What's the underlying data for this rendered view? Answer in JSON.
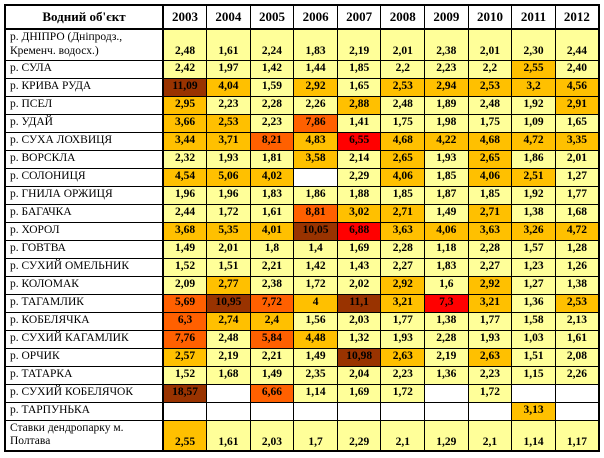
{
  "palette": {
    "y": "#FFFF99",
    "g": "#FFC000",
    "o": "#FF6000",
    "r": "#FF0000",
    "b": "#993300",
    "w": "#FFFFFF"
  },
  "table": {
    "corner_label": "Водний об'єкт",
    "years": [
      "2003",
      "2004",
      "2005",
      "2006",
      "2007",
      "2008",
      "2009",
      "2010",
      "2011",
      "2012"
    ],
    "rows": [
      {
        "label": "р. ДНІПРО (Дніпродз.,\nКременч. водосх.)",
        "tall": true,
        "cells": [
          [
            "2,48",
            "y"
          ],
          [
            "1,61",
            "y"
          ],
          [
            "2,24",
            "y"
          ],
          [
            "1,83",
            "y"
          ],
          [
            "2,19",
            "y"
          ],
          [
            "2,01",
            "y"
          ],
          [
            "2,38",
            "y"
          ],
          [
            "2,01",
            "y"
          ],
          [
            "2,30",
            "y"
          ],
          [
            "2,44",
            "y"
          ]
        ]
      },
      {
        "label": "р. СУЛА",
        "cells": [
          [
            "2,42",
            "y"
          ],
          [
            "1,97",
            "y"
          ],
          [
            "1,42",
            "y"
          ],
          [
            "1,44",
            "y"
          ],
          [
            "1,85",
            "y"
          ],
          [
            "2,2",
            "y"
          ],
          [
            "2,23",
            "y"
          ],
          [
            "2,2",
            "y"
          ],
          [
            "2,55",
            "g"
          ],
          [
            "2,40",
            "y"
          ]
        ]
      },
      {
        "label": "р. КРИВА РУДА",
        "cells": [
          [
            "11,09",
            "b"
          ],
          [
            "4,04",
            "g"
          ],
          [
            "1,59",
            "y"
          ],
          [
            "2,92",
            "g"
          ],
          [
            "1,65",
            "y"
          ],
          [
            "2,53",
            "g"
          ],
          [
            "2,94",
            "g"
          ],
          [
            "2,53",
            "g"
          ],
          [
            "3,2",
            "g"
          ],
          [
            "4,56",
            "g"
          ]
        ]
      },
      {
        "label": "р. ПСЕЛ",
        "cells": [
          [
            "2,95",
            "g"
          ],
          [
            "2,23",
            "y"
          ],
          [
            "2,28",
            "y"
          ],
          [
            "2,26",
            "y"
          ],
          [
            "2,88",
            "g"
          ],
          [
            "2,48",
            "y"
          ],
          [
            "1,89",
            "y"
          ],
          [
            "2,48",
            "y"
          ],
          [
            "1,92",
            "y"
          ],
          [
            "2,91",
            "g"
          ]
        ]
      },
      {
        "label": "р. УДАЙ",
        "cells": [
          [
            "3,66",
            "g"
          ],
          [
            "2,53",
            "g"
          ],
          [
            "2,23",
            "y"
          ],
          [
            "7,86",
            "o"
          ],
          [
            "1,41",
            "y"
          ],
          [
            "1,75",
            "y"
          ],
          [
            "1,98",
            "y"
          ],
          [
            "1,75",
            "y"
          ],
          [
            "1,09",
            "y"
          ],
          [
            "1,65",
            "y"
          ]
        ]
      },
      {
        "label": "р. СУХА ЛОХВИЦЯ",
        "cells": [
          [
            "3,44",
            "g"
          ],
          [
            "3,71",
            "g"
          ],
          [
            "8,21",
            "o"
          ],
          [
            "4,83",
            "g"
          ],
          [
            "6,55",
            "r"
          ],
          [
            "4,68",
            "g"
          ],
          [
            "4,22",
            "g"
          ],
          [
            "4,68",
            "g"
          ],
          [
            "4,72",
            "g"
          ],
          [
            "3,35",
            "g"
          ]
        ]
      },
      {
        "label": "р. ВОРСКЛА",
        "cells": [
          [
            "2,32",
            "y"
          ],
          [
            "1,93",
            "y"
          ],
          [
            "1,81",
            "y"
          ],
          [
            "3,58",
            "g"
          ],
          [
            "2,14",
            "y"
          ],
          [
            "2,65",
            "g"
          ],
          [
            "1,93",
            "y"
          ],
          [
            "2,65",
            "g"
          ],
          [
            "1,86",
            "y"
          ],
          [
            "2,01",
            "y"
          ]
        ]
      },
      {
        "label": "р. СОЛОНИЦЯ",
        "cells": [
          [
            "4,54",
            "g"
          ],
          [
            "5,06",
            "g"
          ],
          [
            "4,02",
            "g"
          ],
          [
            "",
            "w"
          ],
          [
            "2,29",
            "y"
          ],
          [
            "4,06",
            "g"
          ],
          [
            "1,85",
            "y"
          ],
          [
            "4,06",
            "g"
          ],
          [
            "2,51",
            "g"
          ],
          [
            "1,27",
            "y"
          ]
        ]
      },
      {
        "label": "р. ГНИЛА ОРЖИЦЯ",
        "cells": [
          [
            "1,96",
            "y"
          ],
          [
            "1,96",
            "y"
          ],
          [
            "1,83",
            "y"
          ],
          [
            "1,86",
            "y"
          ],
          [
            "1,88",
            "y"
          ],
          [
            "1,85",
            "y"
          ],
          [
            "1,87",
            "y"
          ],
          [
            "1,85",
            "y"
          ],
          [
            "1,92",
            "y"
          ],
          [
            "1,77",
            "y"
          ]
        ]
      },
      {
        "label": "р. БАГАЧКА",
        "cells": [
          [
            "2,44",
            "y"
          ],
          [
            "1,72",
            "y"
          ],
          [
            "1,61",
            "y"
          ],
          [
            "8,81",
            "o"
          ],
          [
            "3,02",
            "g"
          ],
          [
            "2,71",
            "g"
          ],
          [
            "1,49",
            "y"
          ],
          [
            "2,71",
            "g"
          ],
          [
            "1,38",
            "y"
          ],
          [
            "1,68",
            "y"
          ]
        ]
      },
      {
        "label": "р. ХОРОЛ",
        "cells": [
          [
            "3,68",
            "g"
          ],
          [
            "5,35",
            "g"
          ],
          [
            "4,01",
            "g"
          ],
          [
            "10,05",
            "b"
          ],
          [
            "6,88",
            "r"
          ],
          [
            "3,63",
            "g"
          ],
          [
            "4,06",
            "g"
          ],
          [
            "3,63",
            "g"
          ],
          [
            "3,26",
            "g"
          ],
          [
            "4,72",
            "g"
          ]
        ]
      },
      {
        "label": "р. ГОВТВА",
        "cells": [
          [
            "1,49",
            "y"
          ],
          [
            "2,01",
            "y"
          ],
          [
            "1,8",
            "y"
          ],
          [
            "1,4",
            "y"
          ],
          [
            "1,69",
            "y"
          ],
          [
            "2,28",
            "y"
          ],
          [
            "1,18",
            "y"
          ],
          [
            "2,28",
            "y"
          ],
          [
            "1,57",
            "y"
          ],
          [
            "1,28",
            "y"
          ]
        ]
      },
      {
        "label": "р. СУХИЙ ОМЕЛЬНИК",
        "cells": [
          [
            "1,52",
            "y"
          ],
          [
            "1,51",
            "y"
          ],
          [
            "2,21",
            "y"
          ],
          [
            "1,42",
            "y"
          ],
          [
            "1,43",
            "y"
          ],
          [
            "2,27",
            "y"
          ],
          [
            "1,83",
            "y"
          ],
          [
            "2,27",
            "y"
          ],
          [
            "1,23",
            "y"
          ],
          [
            "1,26",
            "y"
          ]
        ]
      },
      {
        "label": "р. КОЛОМАК",
        "cells": [
          [
            "2,09",
            "y"
          ],
          [
            "2,77",
            "g"
          ],
          [
            "2,38",
            "y"
          ],
          [
            "1,72",
            "y"
          ],
          [
            "2,02",
            "y"
          ],
          [
            "2,92",
            "g"
          ],
          [
            "1,6",
            "y"
          ],
          [
            "2,92",
            "g"
          ],
          [
            "1,27",
            "y"
          ],
          [
            "1,38",
            "y"
          ]
        ]
      },
      {
        "label": "р. ТАГАМЛИК",
        "cells": [
          [
            "5,69",
            "o"
          ],
          [
            "10,95",
            "b"
          ],
          [
            "7,72",
            "o"
          ],
          [
            "4",
            "g"
          ],
          [
            "11,1",
            "b"
          ],
          [
            "3,21",
            "g"
          ],
          [
            "7,3",
            "r"
          ],
          [
            "3,21",
            "g"
          ],
          [
            "1,36",
            "y"
          ],
          [
            "2,53",
            "g"
          ]
        ]
      },
      {
        "label": "р. КОБЕЛЯЧКА",
        "cells": [
          [
            "6,3",
            "o"
          ],
          [
            "2,74",
            "g"
          ],
          [
            "2,4",
            "g"
          ],
          [
            "1,56",
            "y"
          ],
          [
            "2,03",
            "y"
          ],
          [
            "1,77",
            "y"
          ],
          [
            "1,38",
            "y"
          ],
          [
            "1,77",
            "y"
          ],
          [
            "1,58",
            "y"
          ],
          [
            "2,13",
            "y"
          ]
        ]
      },
      {
        "label": "р. СУХИЙ КАГАМЛИК",
        "cells": [
          [
            "7,76",
            "o"
          ],
          [
            "2,48",
            "y"
          ],
          [
            "5,84",
            "o"
          ],
          [
            "4,48",
            "g"
          ],
          [
            "1,32",
            "y"
          ],
          [
            "1,93",
            "y"
          ],
          [
            "2,28",
            "y"
          ],
          [
            "1,93",
            "y"
          ],
          [
            "1,03",
            "y"
          ],
          [
            "1,61",
            "y"
          ]
        ]
      },
      {
        "label": "р. ОРЧИК",
        "cells": [
          [
            "2,57",
            "g"
          ],
          [
            "2,19",
            "y"
          ],
          [
            "2,21",
            "y"
          ],
          [
            "1,49",
            "y"
          ],
          [
            "10,98",
            "b"
          ],
          [
            "2,63",
            "g"
          ],
          [
            "2,19",
            "y"
          ],
          [
            "2,63",
            "g"
          ],
          [
            "1,51",
            "y"
          ],
          [
            "2,08",
            "y"
          ]
        ]
      },
      {
        "label": "р. ТАТАРКА",
        "cells": [
          [
            "1,52",
            "y"
          ],
          [
            "1,68",
            "y"
          ],
          [
            "1,49",
            "y"
          ],
          [
            "2,35",
            "y"
          ],
          [
            "2,04",
            "y"
          ],
          [
            "2,23",
            "y"
          ],
          [
            "1,36",
            "y"
          ],
          [
            "2,23",
            "y"
          ],
          [
            "1,15",
            "y"
          ],
          [
            "2,26",
            "y"
          ]
        ]
      },
      {
        "label": "р. СУХИЙ КОБЕЛЯЧОК",
        "cells": [
          [
            "18,57",
            "b"
          ],
          [
            "",
            "w"
          ],
          [
            "6,66",
            "o"
          ],
          [
            "1,14",
            "y"
          ],
          [
            "1,69",
            "y"
          ],
          [
            "1,72",
            "y"
          ],
          [
            "",
            "w"
          ],
          [
            "1,72",
            "y"
          ],
          [
            "",
            "w"
          ],
          [
            "",
            "w"
          ]
        ]
      },
      {
        "label": "р. ТАРПУНЬКА",
        "cells": [
          [
            "",
            "w"
          ],
          [
            "",
            "w"
          ],
          [
            "",
            "w"
          ],
          [
            "",
            "w"
          ],
          [
            "",
            "w"
          ],
          [
            "",
            "w"
          ],
          [
            "",
            "w"
          ],
          [
            "",
            "w"
          ],
          [
            "3,13",
            "g"
          ],
          [
            "",
            "w"
          ]
        ]
      },
      {
        "label": "Ставки дендропарку м.\nПолтава",
        "tall": true,
        "cells": [
          [
            "2,55",
            "g"
          ],
          [
            "1,61",
            "y"
          ],
          [
            "2,03",
            "y"
          ],
          [
            "1,7",
            "y"
          ],
          [
            "2,29",
            "y"
          ],
          [
            "2,1",
            "y"
          ],
          [
            "1,29",
            "y"
          ],
          [
            "2,1",
            "y"
          ],
          [
            "1,14",
            "y"
          ],
          [
            "1,17",
            "y"
          ]
        ]
      }
    ]
  }
}
